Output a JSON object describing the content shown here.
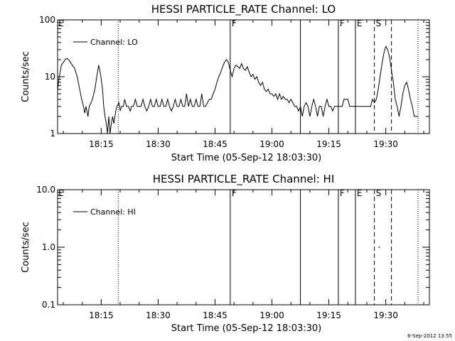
{
  "footer": {
    "timestamp": "6-Sep-2012 13:55"
  },
  "chart_data": [
    {
      "type": "line",
      "title": "HESSI PARTICLE_RATE Channel: LO",
      "xlabel": "Start Time (05-Sep-12 18:03:30)",
      "ylabel": "Counts/sec",
      "y_scale": "log",
      "ylim": [
        1,
        100
      ],
      "y_ticks": [
        {
          "v": 1,
          "label": "1"
        },
        {
          "v": 10,
          "label": "10"
        },
        {
          "v": 100,
          "label": "100"
        }
      ],
      "xlim": [
        "18:03:30",
        "19:41:30"
      ],
      "x_ticks": [
        "18:15",
        "18:30",
        "18:45",
        "19:00",
        "19:15",
        "19:30"
      ],
      "grid": false,
      "legend": {
        "position": "top-left",
        "entries": [
          "Channel: LO"
        ]
      },
      "event_lines": [
        {
          "time": "18:19:30",
          "style": "dotted",
          "label": ""
        },
        {
          "time": "18:49:00",
          "style": "solid",
          "label": "F"
        },
        {
          "time": "19:07:30",
          "style": "solid",
          "label": ""
        },
        {
          "time": "19:17:30",
          "style": "solid",
          "label": "F"
        },
        {
          "time": "19:22:00",
          "style": "solid",
          "label": "E"
        },
        {
          "time": "19:27:00",
          "style": "dashed",
          "label": "S"
        },
        {
          "time": "19:31:30",
          "style": "dashed",
          "label": ""
        },
        {
          "time": "19:38:30",
          "style": "dotted",
          "label": ""
        }
      ],
      "edge_labels": [
        "E"
      ],
      "series": [
        {
          "name": "Channel: LO",
          "points": [
            [
              "18:03:30",
              6
            ],
            [
              "18:03:50",
              9
            ],
            [
              "18:04:30",
              16
            ],
            [
              "18:05:30",
              20
            ],
            [
              "18:06:00",
              21
            ],
            [
              "18:06:40",
              19
            ],
            [
              "18:07:20",
              16
            ],
            [
              "18:08:00",
              14
            ],
            [
              "18:08:40",
              10
            ],
            [
              "18:09:20",
              6
            ],
            [
              "18:09:50",
              4
            ],
            [
              "18:10:20",
              3
            ],
            [
              "18:10:40",
              2.3
            ],
            [
              "18:11:00",
              3
            ],
            [
              "18:11:30",
              2
            ],
            [
              "18:11:50",
              3
            ],
            [
              "18:12:20",
              3.5
            ],
            [
              "18:12:40",
              4
            ],
            [
              "18:13:20",
              6
            ],
            [
              "18:13:50",
              10
            ],
            [
              "18:14:20",
              16
            ],
            [
              "18:14:50",
              11
            ],
            [
              "18:15:20",
              6
            ],
            [
              "18:15:40",
              3
            ],
            [
              "18:16:00",
              2
            ],
            [
              "18:16:20",
              1.5
            ],
            [
              "18:16:40",
              1
            ],
            [
              "18:17:00",
              2
            ],
            [
              "18:17:20",
              1
            ],
            [
              "18:17:40",
              1.5
            ],
            [
              "18:18:00",
              2
            ],
            [
              "18:18:20",
              1.5
            ],
            [
              "18:18:50",
              2.5
            ],
            [
              "18:19:10",
              3
            ],
            [
              "18:19:40",
              3.5
            ],
            [
              "18:20:00",
              2.5
            ],
            [
              "18:20:20",
              3
            ],
            [
              "18:20:50",
              3
            ],
            [
              "18:21:10",
              4
            ],
            [
              "18:21:40",
              3
            ],
            [
              "18:22:10",
              3
            ],
            [
              "18:22:40",
              2.5
            ],
            [
              "18:23:00",
              3
            ],
            [
              "18:23:30",
              3
            ],
            [
              "18:24:00",
              4
            ],
            [
              "18:24:30",
              3
            ],
            [
              "18:25:00",
              3
            ],
            [
              "18:25:30",
              3
            ],
            [
              "18:26:00",
              4
            ],
            [
              "18:26:30",
              3
            ],
            [
              "18:27:00",
              2.5
            ],
            [
              "18:27:30",
              3
            ],
            [
              "18:28:00",
              4
            ],
            [
              "18:28:30",
              3
            ],
            [
              "18:29:00",
              3
            ],
            [
              "18:29:30",
              4
            ],
            [
              "18:30:00",
              3
            ],
            [
              "18:30:30",
              3
            ],
            [
              "18:31:00",
              4
            ],
            [
              "18:31:30",
              3
            ],
            [
              "18:32:00",
              3
            ],
            [
              "18:32:30",
              4
            ],
            [
              "18:33:00",
              3
            ],
            [
              "18:33:30",
              2.5
            ],
            [
              "18:34:00",
              3
            ],
            [
              "18:34:30",
              4
            ],
            [
              "18:35:00",
              3
            ],
            [
              "18:35:30",
              3
            ],
            [
              "18:36:00",
              4
            ],
            [
              "18:36:30",
              3
            ],
            [
              "18:37:00",
              3
            ],
            [
              "18:37:30",
              5
            ],
            [
              "18:38:00",
              3
            ],
            [
              "18:38:30",
              4
            ],
            [
              "18:39:00",
              3
            ],
            [
              "18:39:30",
              3
            ],
            [
              "18:40:00",
              4
            ],
            [
              "18:40:30",
              3
            ],
            [
              "18:41:00",
              3
            ],
            [
              "18:41:30",
              5
            ],
            [
              "18:42:00",
              3
            ],
            [
              "18:42:30",
              3
            ],
            [
              "18:43:00",
              3.5
            ],
            [
              "18:43:30",
              4
            ],
            [
              "18:44:00",
              4
            ],
            [
              "18:44:30",
              5
            ],
            [
              "18:45:00",
              6
            ],
            [
              "18:45:30",
              8
            ],
            [
              "18:46:00",
              10
            ],
            [
              "18:46:30",
              12
            ],
            [
              "18:47:00",
              15
            ],
            [
              "18:47:30",
              18
            ],
            [
              "18:48:00",
              20
            ],
            [
              "18:48:30",
              18
            ],
            [
              "18:49:00",
              13
            ],
            [
              "18:49:30",
              10
            ],
            [
              "18:50:00",
              14
            ],
            [
              "18:50:30",
              16
            ],
            [
              "18:51:00",
              15
            ],
            [
              "18:51:30",
              14
            ],
            [
              "18:52:00",
              17
            ],
            [
              "18:52:30",
              14
            ],
            [
              "18:53:00",
              13
            ],
            [
              "18:53:30",
              15
            ],
            [
              "18:54:00",
              12
            ],
            [
              "18:54:30",
              10
            ],
            [
              "18:55:00",
              11
            ],
            [
              "18:55:30",
              9
            ],
            [
              "18:56:00",
              10
            ],
            [
              "18:56:30",
              8
            ],
            [
              "18:57:00",
              7
            ],
            [
              "18:57:30",
              8
            ],
            [
              "18:58:00",
              6
            ],
            [
              "18:58:30",
              5.5
            ],
            [
              "18:59:00",
              6
            ],
            [
              "18:59:30",
              5
            ],
            [
              "19:00:00",
              5
            ],
            [
              "19:00:30",
              4.5
            ],
            [
              "19:01:00",
              5
            ],
            [
              "19:01:30",
              4
            ],
            [
              "19:02:00",
              5
            ],
            [
              "19:02:30",
              4
            ],
            [
              "19:03:00",
              4.5
            ],
            [
              "19:03:30",
              4
            ],
            [
              "19:04:00",
              4
            ],
            [
              "19:04:30",
              3.5
            ],
            [
              "19:05:00",
              4
            ],
            [
              "19:05:30",
              3.5
            ],
            [
              "19:06:00",
              3
            ],
            [
              "19:06:30",
              3
            ],
            [
              "19:07:00",
              2.5
            ],
            [
              "19:07:30",
              3
            ],
            [
              "19:08:00",
              2
            ],
            [
              "19:08:30",
              3
            ],
            [
              "19:09:00",
              3.5
            ],
            [
              "19:09:30",
              3
            ],
            [
              "19:10:00",
              2
            ],
            [
              "19:10:30",
              3
            ],
            [
              "19:11:00",
              4
            ],
            [
              "19:11:30",
              3
            ],
            [
              "19:12:00",
              2
            ],
            [
              "19:12:30",
              3
            ],
            [
              "19:13:00",
              3
            ],
            [
              "19:13:30",
              2
            ],
            [
              "19:14:00",
              3
            ],
            [
              "19:14:30",
              4
            ],
            [
              "19:15:00",
              3
            ],
            [
              "19:15:30",
              3
            ],
            [
              "19:16:00",
              2.5
            ],
            [
              "19:16:30",
              3
            ],
            [
              "19:17:00",
              3
            ],
            [
              "19:17:30",
              3
            ],
            [
              "19:18:00",
              3
            ],
            [
              "19:18:30",
              3
            ],
            [
              "19:19:00",
              4
            ],
            [
              "19:19:30",
              4
            ],
            [
              "19:20:00",
              4
            ],
            [
              "19:20:30",
              3
            ],
            [
              "19:21:00",
              3
            ],
            [
              "19:22:00",
              3
            ],
            [
              "19:23:00",
              3
            ],
            [
              "19:24:00",
              3
            ],
            [
              "19:25:00",
              3
            ],
            [
              "19:26:00",
              3
            ],
            [
              "19:26:30",
              4
            ],
            [
              "19:27:00",
              3.5
            ],
            [
              "19:27:30",
              4
            ],
            [
              "19:28:00",
              6
            ],
            [
              "19:28:30",
              10
            ],
            [
              "19:29:00",
              17
            ],
            [
              "19:29:30",
              26
            ],
            [
              "19:30:00",
              34
            ],
            [
              "19:30:30",
              30
            ],
            [
              "19:31:00",
              22
            ],
            [
              "19:31:30",
              13
            ],
            [
              "19:32:00",
              8
            ],
            [
              "19:32:30",
              4
            ],
            [
              "19:33:00",
              3
            ],
            [
              "19:33:30",
              2
            ],
            [
              "19:34:00",
              3
            ],
            [
              "19:34:30",
              5
            ],
            [
              "19:35:00",
              7
            ],
            [
              "19:35:30",
              8
            ],
            [
              "19:36:00",
              6
            ],
            [
              "19:36:30",
              4
            ],
            [
              "19:37:00",
              3
            ],
            [
              "19:37:30",
              2
            ],
            [
              "19:38:00",
              2
            ],
            [
              "19:38:30",
              2
            ]
          ]
        }
      ]
    },
    {
      "type": "line",
      "title": "HESSI PARTICLE_RATE Channel: HI",
      "xlabel": "Start Time (05-Sep-12 18:03:30)",
      "ylabel": "Counts/sec",
      "y_scale": "log",
      "ylim": [
        0.1,
        10
      ],
      "y_ticks": [
        {
          "v": 0.1,
          "label": "0.1"
        },
        {
          "v": 1,
          "label": "1.0"
        },
        {
          "v": 10,
          "label": "10.0"
        }
      ],
      "xlim": [
        "18:03:30",
        "19:41:30"
      ],
      "x_ticks": [
        "18:15",
        "18:30",
        "18:45",
        "19:00",
        "19:15",
        "19:30"
      ],
      "grid": false,
      "legend": {
        "position": "top-left",
        "entries": [
          "Channel: HI"
        ]
      },
      "event_lines": [
        {
          "time": "18:19:30",
          "style": "dotted",
          "label": ""
        },
        {
          "time": "18:49:00",
          "style": "solid",
          "label": "F"
        },
        {
          "time": "19:07:30",
          "style": "solid",
          "label": ""
        },
        {
          "time": "19:17:30",
          "style": "solid",
          "label": "F"
        },
        {
          "time": "19:22:00",
          "style": "solid",
          "label": "E"
        },
        {
          "time": "19:27:00",
          "style": "dashed",
          "label": "S"
        },
        {
          "time": "19:31:30",
          "style": "dashed",
          "label": ""
        },
        {
          "time": "19:38:30",
          "style": "dotted",
          "label": ""
        }
      ],
      "edge_labels": [
        "E"
      ],
      "series": [
        {
          "name": "Channel: HI",
          "points": [
            [
              "19:28:00",
              1
            ],
            [
              "19:28:30",
              1
            ]
          ]
        }
      ]
    }
  ]
}
